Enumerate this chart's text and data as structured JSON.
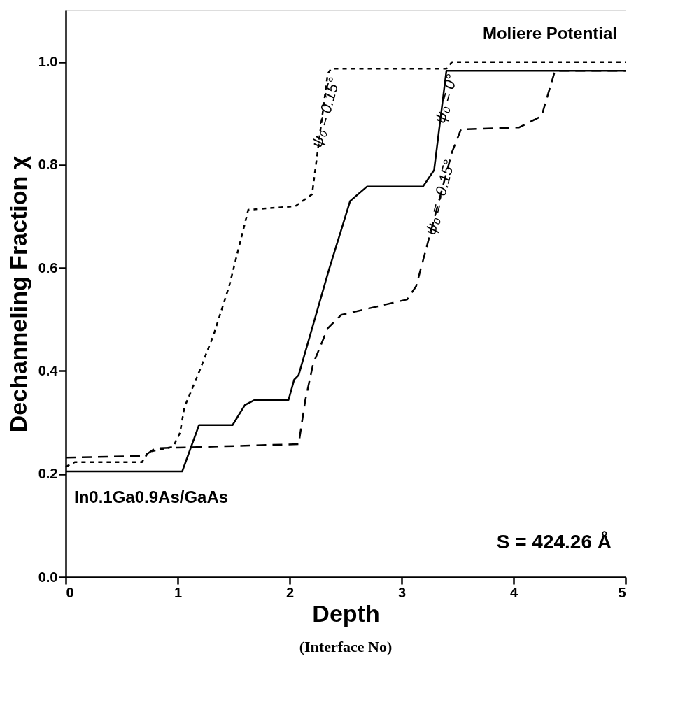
{
  "chart_data": {
    "type": "line",
    "xlabel": "Depth",
    "ylabel": "Dechanneling Fraction χ",
    "xlim": [
      0,
      5
    ],
    "ylim": [
      0,
      1.1
    ],
    "xticks": [
      {
        "value": 0,
        "label": "0"
      },
      {
        "value": 1,
        "label": "1"
      },
      {
        "value": 2,
        "label": "2"
      },
      {
        "value": 3,
        "label": "3"
      },
      {
        "value": 4,
        "label": "4"
      },
      {
        "value": 5,
        "label": "5"
      }
    ],
    "yticks": [
      {
        "value": 0,
        "label": "0.0"
      },
      {
        "value": 0.2,
        "label": "0.2"
      },
      {
        "value": 0.4,
        "label": "0.4"
      },
      {
        "value": 0.6,
        "label": "0.6"
      },
      {
        "value": 0.8,
        "label": "0.8"
      },
      {
        "value": 1,
        "label": "1.0"
      }
    ],
    "grid": false,
    "legend": false,
    "marker": "none",
    "series": [
      {
        "name": "ψ₀ = 0.15°",
        "color": "#000000",
        "line_style": "dotted",
        "x": [
          0,
          0.08,
          0.68,
          0.74,
          0.96,
          1.02,
          1.06,
          1.18,
          1.32,
          1.46,
          1.63,
          2.05,
          2.2,
          2.34,
          2.37,
          3.4,
          3.45,
          5
        ],
        "values": [
          0.214,
          0.223,
          0.223,
          0.243,
          0.253,
          0.28,
          0.33,
          0.392,
          0.47,
          0.565,
          0.713,
          0.72,
          0.743,
          0.977,
          0.987,
          0.987,
          1.0,
          1.0
        ]
      },
      {
        "name": "ψ₀ = 0°",
        "color": "#000000",
        "line_style": "solid",
        "x": [
          0,
          1.04,
          1.19,
          1.49,
          1.6,
          1.69,
          1.99,
          2.04,
          2.08,
          2.35,
          2.54,
          2.69,
          3.19,
          3.29,
          3.4,
          5
        ],
        "values": [
          0.205,
          0.205,
          0.295,
          0.295,
          0.334,
          0.344,
          0.344,
          0.383,
          0.392,
          0.596,
          0.73,
          0.758,
          0.758,
          0.79,
          0.983,
          0.983
        ]
      },
      {
        "name": "ψ₀ = -0.15°",
        "color": "#000000",
        "line_style": "dashed",
        "x": [
          0,
          0.7,
          0.8,
          2.08,
          2.14,
          2.21,
          2.34,
          2.46,
          3.05,
          3.13,
          3.45,
          3.53,
          4.05,
          4.25,
          4.37,
          5
        ],
        "values": [
          0.232,
          0.235,
          0.25,
          0.258,
          0.344,
          0.414,
          0.483,
          0.509,
          0.539,
          0.565,
          0.825,
          0.869,
          0.873,
          0.895,
          0.983,
          0.983
        ]
      }
    ],
    "annotations": [
      "Moliere Potential",
      "In0.1Ga0.9As/GaAs",
      "S = 424.26 Å",
      "(Interface No)"
    ]
  }
}
